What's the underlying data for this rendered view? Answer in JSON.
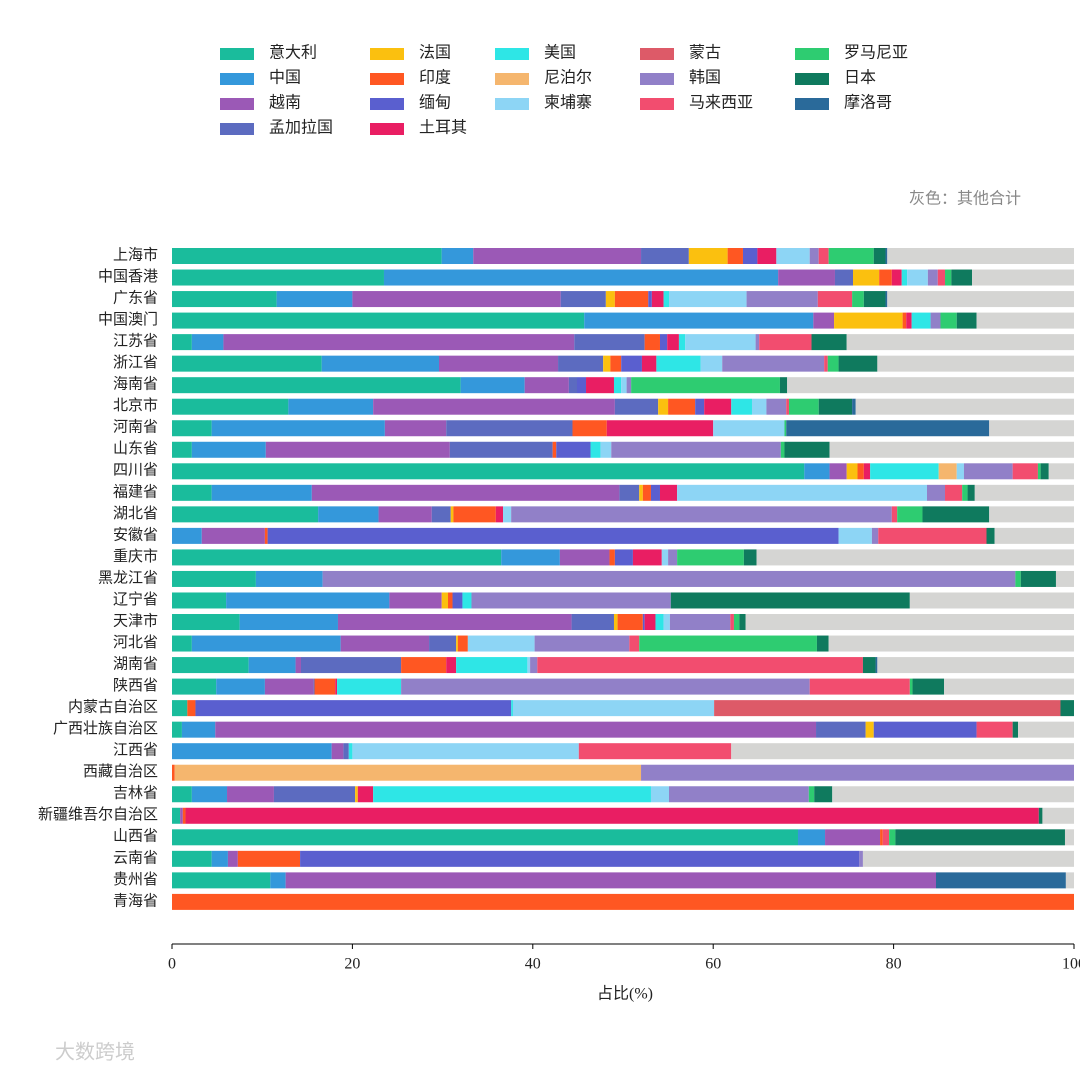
{
  "chart_data": {
    "type": "stacked-barh",
    "annotation": "灰色：其他合计",
    "xlabel": "占比(%)",
    "watermark": "大数跨境",
    "xlim": [
      0,
      100
    ],
    "xticks": [
      0,
      20,
      40,
      60,
      80,
      100
    ],
    "legend_position": "top",
    "categories": [
      "上海市",
      "中国香港",
      "广东省",
      "中国澳门",
      "江苏省",
      "浙江省",
      "海南省",
      "北京市",
      "河南省",
      "山东省",
      "四川省",
      "福建省",
      "湖北省",
      "安徽省",
      "重庆市",
      "黑龙江省",
      "辽宁省",
      "天津市",
      "河北省",
      "湖南省",
      "陕西省",
      "内蒙古自治区",
      "广西壮族自治区",
      "江西省",
      "西藏自治区",
      "吉林省",
      "新疆维吾尔自治区",
      "山西省",
      "云南省",
      "贵州省",
      "青海省"
    ],
    "series": [
      {
        "name": "意大利",
        "color": "#1abc9c",
        "values": [
          29.9,
          23.5,
          11.6,
          45.7,
          2.2,
          16.6,
          32.0,
          12.9,
          4.4,
          2.2,
          70.1,
          4.4,
          16.2,
          0,
          36.5,
          9.3,
          6.0,
          7.5,
          2.2,
          8.5,
          4.9,
          1.7,
          1.1,
          0,
          0,
          2.2,
          0.9,
          69.4,
          4.4,
          10.9,
          0
        ]
      },
      {
        "name": "中国",
        "color": "#3498db",
        "values": [
          3.5,
          43.7,
          8.4,
          25.4,
          3.5,
          13.0,
          7.1,
          9.4,
          19.2,
          8.2,
          2.8,
          11.1,
          6.7,
          3.3,
          6.5,
          7.4,
          18.1,
          10.9,
          16.5,
          5.2,
          5.4,
          0,
          3.7,
          17.7,
          0,
          3.9,
          0,
          3.0,
          1.8,
          1.7,
          0
        ]
      },
      {
        "name": "越南",
        "color": "#9b59b6",
        "values": [
          18.6,
          6.3,
          23.1,
          2.3,
          38.9,
          13.2,
          4.9,
          26.8,
          6.8,
          20.4,
          1.9,
          34.1,
          5.9,
          7.0,
          5.5,
          0,
          5.8,
          25.9,
          9.8,
          0.6,
          5.4,
          0,
          66.6,
          1.3,
          0,
          5.2,
          0.3,
          6.1,
          1.1,
          72.1,
          0
        ]
      },
      {
        "name": "孟加拉国",
        "color": "#5c6bc0",
        "values": [
          5.3,
          2.0,
          5.0,
          0,
          7.8,
          5.0,
          0.9,
          4.8,
          14.0,
          11.4,
          0,
          2.2,
          2.1,
          0,
          0,
          0,
          0,
          4.7,
          3.0,
          11.1,
          0.1,
          0,
          5.5,
          0.6,
          0,
          9.0,
          0,
          0,
          0,
          0,
          0
        ]
      },
      {
        "name": "法国",
        "color": "#fbc00f",
        "values": [
          4.3,
          2.9,
          1.0,
          7.6,
          0,
          0.8,
          0,
          1.1,
          0,
          0,
          1.2,
          0.4,
          0.3,
          0,
          0,
          0,
          0.7,
          0.4,
          0.2,
          0,
          0,
          0,
          0.9,
          0,
          0,
          0.3,
          0,
          0,
          0,
          0,
          0
        ]
      },
      {
        "name": "印度",
        "color": "#ff5722",
        "values": [
          1.7,
          1.4,
          3.7,
          0.4,
          1.7,
          1.2,
          0,
          3.0,
          3.8,
          0.4,
          0.7,
          0.9,
          4.7,
          0.3,
          0.6,
          0,
          0.5,
          2.8,
          1.1,
          5.0,
          2.3,
          0.9,
          0,
          0,
          0.3,
          0,
          0.3,
          0.3,
          6.9,
          0,
          100
        ]
      },
      {
        "name": "缅甸",
        "color": "#5a5fcf",
        "values": [
          1.6,
          0,
          0.4,
          0,
          0.8,
          2.3,
          1.0,
          1.0,
          0,
          3.8,
          0,
          1.0,
          0,
          63.3,
          2.0,
          0,
          1.1,
          0.2,
          0,
          0,
          0,
          35.0,
          11.4,
          0,
          0,
          0,
          0,
          0,
          62.0,
          0,
          0
        ]
      },
      {
        "name": "土耳其",
        "color": "#e91e63",
        "values": [
          2.1,
          1.1,
          1.3,
          0.6,
          1.3,
          1.6,
          3.1,
          3.0,
          11.8,
          0,
          0.7,
          1.9,
          0.8,
          0,
          3.2,
          0,
          0,
          1.2,
          0,
          1.1,
          0.2,
          0,
          0,
          0,
          0,
          1.7,
          94.6,
          0,
          0,
          0,
          0
        ]
      },
      {
        "name": "美国",
        "color": "#2ee6e6",
        "values": [
          0,
          0.6,
          0.6,
          2.1,
          0.7,
          4.9,
          0.8,
          2.3,
          0,
          1.1,
          7.6,
          0,
          0,
          0,
          0,
          0,
          1.0,
          0.9,
          0,
          7.9,
          7.1,
          0.2,
          0,
          0.4,
          0,
          30.8,
          0,
          0,
          0,
          0,
          0
        ]
      },
      {
        "name": "尼泊尔",
        "color": "#f5b66e",
        "values": [
          0,
          0,
          0,
          0,
          0,
          0,
          0,
          0,
          0,
          0,
          2.0,
          0,
          0,
          0,
          0,
          0,
          0,
          0,
          0,
          0,
          0,
          0,
          0,
          0,
          51.7,
          0,
          0,
          0,
          0,
          0,
          0
        ]
      },
      {
        "name": "柬埔寨",
        "color": "#8dd5f5",
        "values": [
          3.7,
          2.3,
          8.6,
          0,
          7.8,
          2.4,
          0.6,
          1.6,
          7.9,
          1.2,
          0.8,
          27.7,
          0.9,
          3.7,
          0.7,
          0,
          0,
          0.7,
          7.4,
          0.3,
          0,
          22.3,
          0,
          25.1,
          0,
          2.0,
          0,
          0,
          0,
          0,
          0
        ]
      },
      {
        "name": "蒙古",
        "color": "#dd5a68",
        "values": [
          0,
          0,
          0,
          0,
          0,
          0,
          0,
          0,
          0,
          0,
          0,
          0,
          0,
          0,
          0,
          0,
          0,
          0,
          0,
          0,
          0,
          38.4,
          0,
          0,
          0,
          0,
          0,
          0,
          0,
          0,
          0
        ]
      },
      {
        "name": "韩国",
        "color": "#9180c8",
        "values": [
          1.0,
          1.1,
          7.9,
          1.1,
          0.4,
          11.3,
          0.5,
          2.2,
          0,
          18.8,
          5.4,
          2.0,
          42.2,
          0.7,
          1.0,
          76.8,
          22.1,
          6.7,
          10.5,
          0.8,
          45.3,
          0,
          0,
          0,
          48.0,
          15.5,
          0,
          0,
          0.4,
          0,
          0
        ]
      },
      {
        "name": "马来西亚",
        "color": "#f24d6f",
        "values": [
          1.1,
          0.8,
          3.8,
          0,
          5.8,
          0.4,
          0,
          0.3,
          0,
          0,
          2.8,
          1.9,
          0.6,
          12.0,
          0,
          0,
          0,
          0.4,
          1.1,
          36.1,
          11.1,
          0,
          4.0,
          16.9,
          0,
          0,
          0,
          0.7,
          0,
          0,
          0
        ]
      },
      {
        "name": "罗马尼亚",
        "color": "#2ecc71",
        "values": [
          5.0,
          0.7,
          1.3,
          1.8,
          0,
          1.2,
          16.5,
          3.3,
          0.2,
          0.4,
          0.3,
          0.6,
          2.8,
          0,
          7.4,
          0.6,
          0,
          0.6,
          19.7,
          0,
          0.3,
          0,
          0,
          0,
          0,
          0.6,
          0,
          0.7,
          0,
          0,
          0
        ]
      },
      {
        "name": "日本",
        "color": "#0f7a5e",
        "values": [
          1.3,
          2.3,
          2.4,
          2.2,
          3.9,
          4.3,
          0.8,
          3.7,
          0,
          5.0,
          0.9,
          0.8,
          7.4,
          0.9,
          1.4,
          3.9,
          26.5,
          0.7,
          1.3,
          1.4,
          3.5,
          1.5,
          0.6,
          0,
          0,
          2.0,
          0.4,
          18.8,
          0,
          0,
          0
        ]
      },
      {
        "name": "摩洛哥",
        "color": "#2a6a9a",
        "values": [
          0.2,
          0,
          0.2,
          0,
          0,
          0,
          0,
          0.4,
          22.5,
          0,
          0,
          0,
          0,
          0,
          0,
          0,
          0,
          0,
          0,
          0.2,
          0,
          0,
          0,
          0,
          0,
          0,
          0,
          0,
          0,
          14.4,
          0
        ]
      }
    ],
    "others": {
      "color": "#d5d5d3",
      "values": [
        20.7,
        11.3,
        20.7,
        10.8,
        25.2,
        21.8,
        31.8,
        24.2,
        9.4,
        27.1,
        2.8,
        11.0,
        9.4,
        8.8,
        35.2,
        2.0,
        18.2,
        36.4,
        27.2,
        21.8,
        14.4,
        0,
        6.2,
        38.0,
        0,
        26.8,
        3.5,
        1.0,
        23.4,
        0.9,
        0
      ]
    }
  }
}
